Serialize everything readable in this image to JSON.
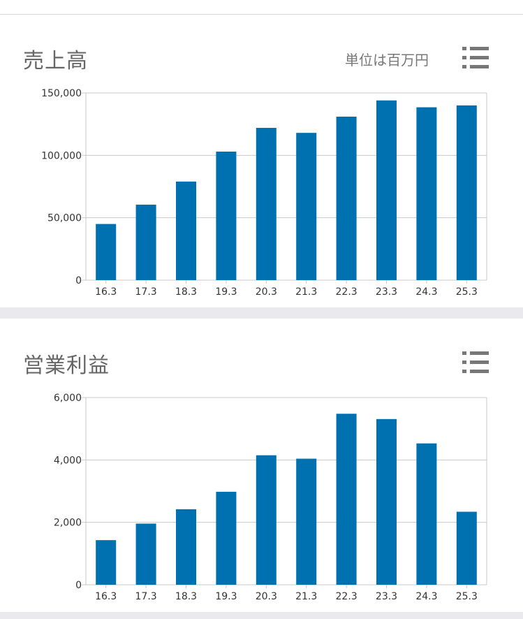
{
  "sales": {
    "title": "売上高",
    "unit_note": "単位は百万円",
    "menu_icon": "list-icon"
  },
  "profit": {
    "title": "営業利益",
    "menu_icon": "list-icon"
  },
  "colors": {
    "bar": "#0071b0",
    "grid": "#c8c8c8",
    "axis_text": "#333333"
  },
  "chart_data": [
    {
      "type": "bar",
      "title": "売上高",
      "categories": [
        "16.3",
        "17.3",
        "18.3",
        "19.3",
        "20.3",
        "21.3",
        "22.3",
        "23.3",
        "24.3",
        "25.3"
      ],
      "values": [
        45000,
        60500,
        79000,
        103000,
        122000,
        118000,
        131000,
        144000,
        138500,
        140000
      ],
      "ylim": [
        0,
        150000
      ],
      "yticks": [
        0,
        50000,
        100000,
        150000
      ],
      "ytick_labels": [
        "0",
        "50,000",
        "100,000",
        "150,000"
      ],
      "grid": true,
      "legend": "none"
    },
    {
      "type": "bar",
      "title": "営業利益",
      "categories": [
        "16.3",
        "17.3",
        "18.3",
        "19.3",
        "20.3",
        "21.3",
        "22.3",
        "23.3",
        "24.3",
        "25.3"
      ],
      "values": [
        1430,
        1960,
        2420,
        2980,
        4150,
        4040,
        5480,
        5310,
        4530,
        2340
      ],
      "ylim": [
        0,
        6000
      ],
      "yticks": [
        0,
        2000,
        4000,
        6000
      ],
      "ytick_labels": [
        "0",
        "2,000",
        "4,000",
        "6,000"
      ],
      "grid": true,
      "legend": "none"
    }
  ]
}
